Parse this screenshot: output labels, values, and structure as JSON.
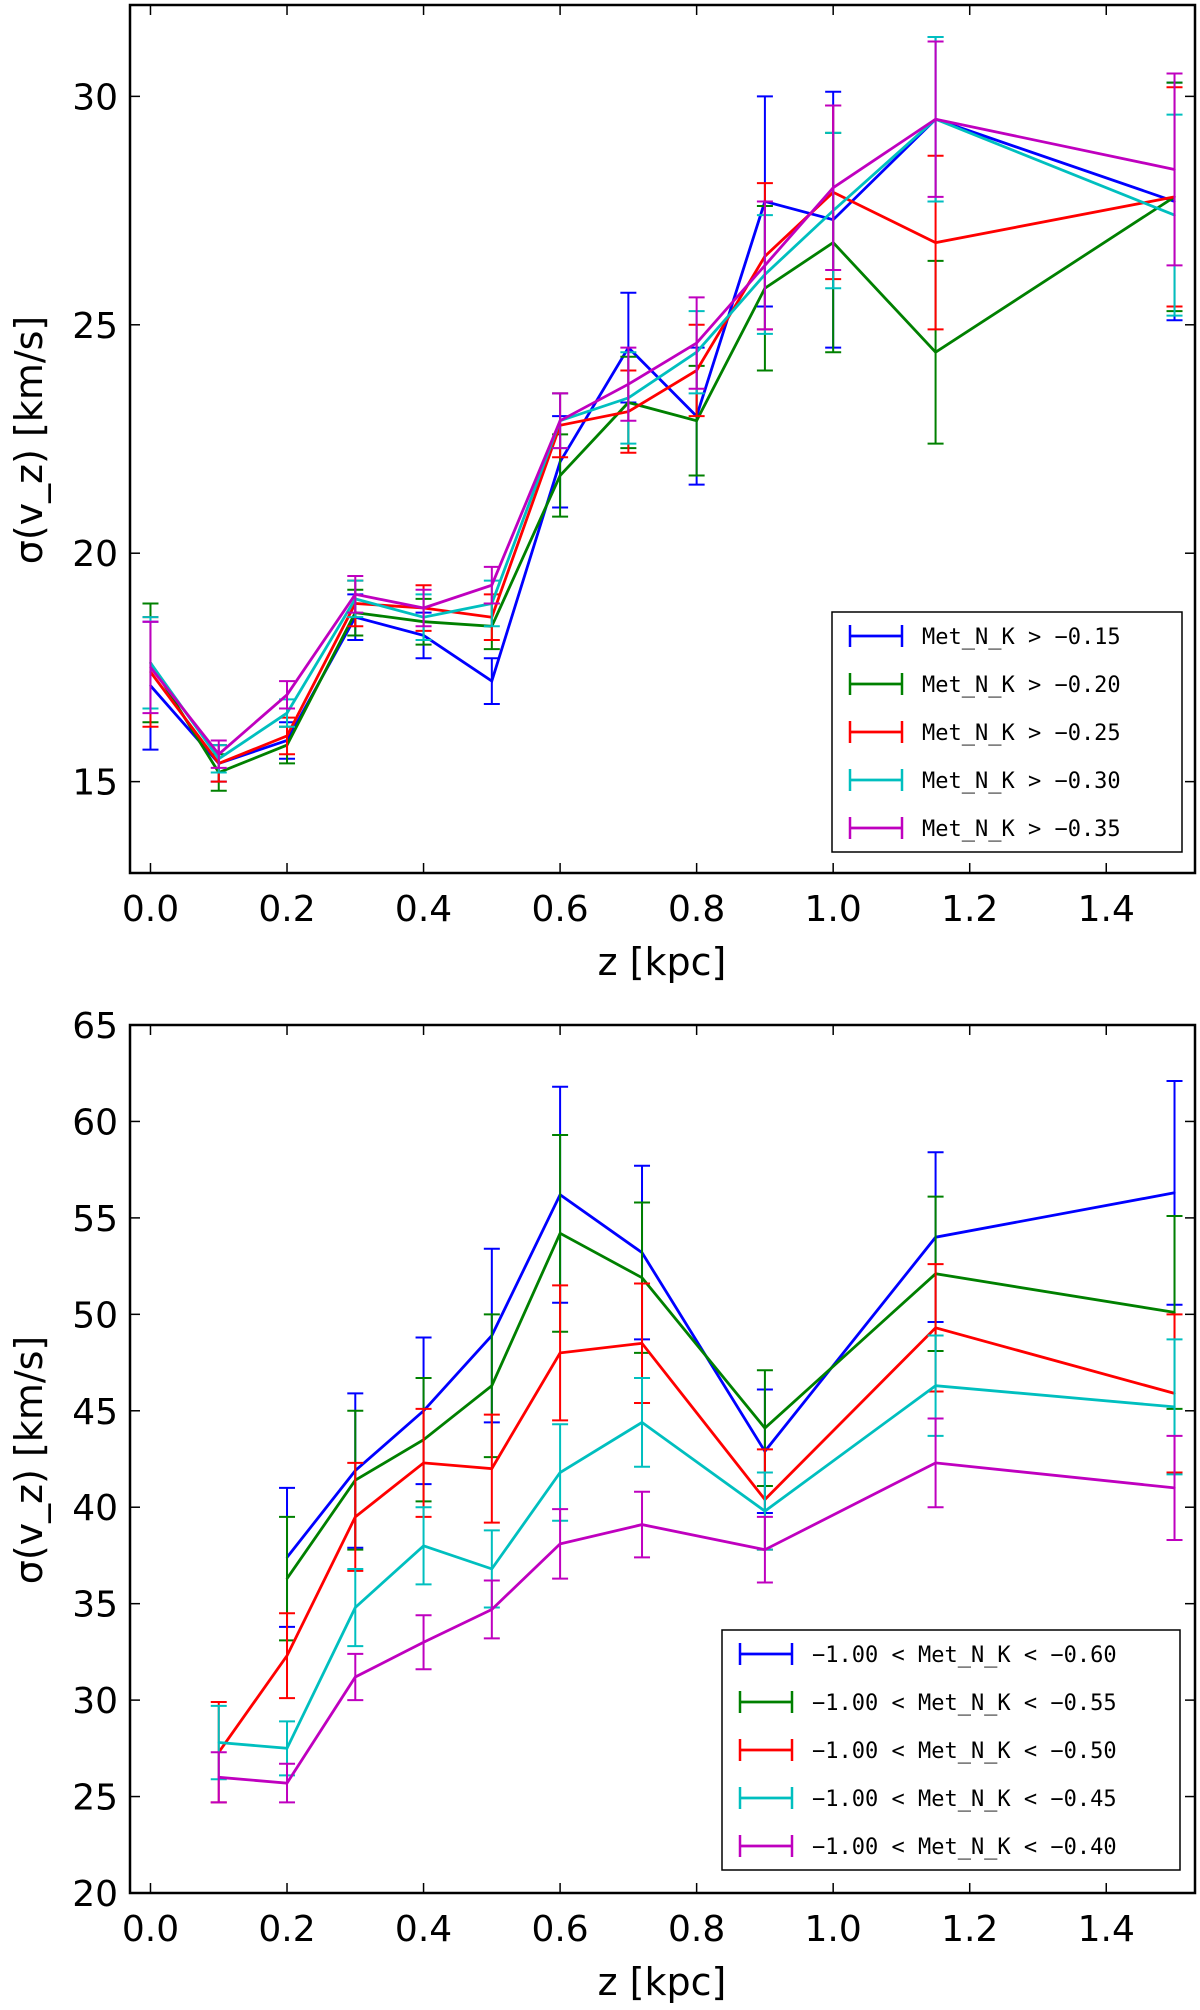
{
  "chart_data": [
    {
      "type": "line",
      "title": "",
      "xlabel": "z [kpc]",
      "ylabel": "σ(v_z) [km/s]",
      "xlim": [
        -0.03,
        1.53
      ],
      "ylim": [
        13,
        32
      ],
      "xticks": [
        0.0,
        0.2,
        0.4,
        0.6,
        0.8,
        1.0,
        1.2,
        1.4
      ],
      "xtick_labels": [
        "0.0",
        "0.2",
        "0.4",
        "0.6",
        "0.8",
        "1.0",
        "1.2",
        "1.4"
      ],
      "yticks": [
        15,
        20,
        25,
        30
      ],
      "ytick_labels": [
        "15",
        "20",
        "25",
        "30"
      ],
      "legend_position": "lower-right",
      "x": [
        0.0,
        0.1,
        0.2,
        0.3,
        0.4,
        0.5,
        0.6,
        0.7,
        0.8,
        0.9,
        1.0,
        1.15,
        1.5
      ],
      "series": [
        {
          "name": "Met_N_K > −0.15",
          "color": "#0000ff",
          "values": [
            17.1,
            15.4,
            15.9,
            18.6,
            18.2,
            17.2,
            22.0,
            24.5,
            23.0,
            27.7,
            27.3,
            29.5,
            27.7
          ],
          "errors": [
            1.4,
            0.4,
            0.4,
            0.5,
            0.5,
            0.5,
            1.0,
            1.2,
            1.5,
            2.3,
            2.8,
            1.8,
            2.6
          ]
        },
        {
          "name": "Met_N_K > −0.20",
          "color": "#008000",
          "values": [
            17.6,
            15.2,
            15.8,
            18.7,
            18.5,
            18.4,
            21.7,
            23.3,
            22.9,
            25.8,
            26.8,
            24.4,
            27.8
          ],
          "errors": [
            1.3,
            0.4,
            0.4,
            0.5,
            0.5,
            0.5,
            0.9,
            1.0,
            1.2,
            1.8,
            2.4,
            2.0,
            2.5
          ]
        },
        {
          "name": "Met_N_K > −0.25",
          "color": "#ff0000",
          "values": [
            17.4,
            15.4,
            16.0,
            18.9,
            18.8,
            18.6,
            22.8,
            23.1,
            24.0,
            26.5,
            27.9,
            26.8,
            27.8
          ],
          "errors": [
            1.2,
            0.4,
            0.4,
            0.5,
            0.5,
            0.5,
            0.7,
            0.9,
            1.0,
            1.6,
            1.9,
            1.9,
            2.4
          ]
        },
        {
          "name": "Met_N_K > −0.30",
          "color": "#00bfbf",
          "values": [
            17.6,
            15.5,
            16.5,
            19.0,
            18.6,
            18.9,
            22.9,
            23.4,
            24.4,
            26.1,
            27.5,
            29.5,
            27.4
          ],
          "errors": [
            1.0,
            0.3,
            0.3,
            0.4,
            0.5,
            0.5,
            0.6,
            1.0,
            0.9,
            1.3,
            1.7,
            1.8,
            2.2
          ]
        },
        {
          "name": "Met_N_K > −0.35",
          "color": "#bf00bf",
          "values": [
            17.5,
            15.6,
            16.9,
            19.1,
            18.8,
            19.3,
            22.9,
            23.7,
            24.6,
            26.3,
            28.0,
            29.5,
            28.4
          ],
          "errors": [
            1.0,
            0.3,
            0.3,
            0.4,
            0.4,
            0.4,
            0.6,
            0.8,
            1.0,
            1.4,
            1.8,
            1.7,
            2.1
          ]
        }
      ]
    },
    {
      "type": "line",
      "title": "",
      "xlabel": "z [kpc]",
      "ylabel": "σ(v_z) [km/s]",
      "xlim": [
        -0.03,
        1.53
      ],
      "ylim": [
        20,
        65
      ],
      "xticks": [
        0.0,
        0.2,
        0.4,
        0.6,
        0.8,
        1.0,
        1.2,
        1.4
      ],
      "xtick_labels": [
        "0.0",
        "0.2",
        "0.4",
        "0.6",
        "0.8",
        "1.0",
        "1.2",
        "1.4"
      ],
      "yticks": [
        20,
        25,
        30,
        35,
        40,
        45,
        50,
        55,
        60,
        65
      ],
      "ytick_labels": [
        "20",
        "25",
        "30",
        "35",
        "40",
        "45",
        "50",
        "55",
        "60",
        "65"
      ],
      "legend_position": "lower-right",
      "x": [
        0.1,
        0.2,
        0.3,
        0.4,
        0.5,
        0.6,
        0.72,
        0.9,
        1.15,
        1.5
      ],
      "series": [
        {
          "name": "−1.00 < Met_N_K < −0.60",
          "color": "#0000ff",
          "x": [
            0.2,
            0.3,
            0.4,
            0.5,
            0.6,
            0.72,
            0.9,
            1.15,
            1.5
          ],
          "values": [
            37.4,
            41.9,
            45.0,
            48.9,
            56.2,
            53.2,
            42.9,
            54.0,
            56.3
          ],
          "errors": [
            3.6,
            4.0,
            3.8,
            4.5,
            5.6,
            4.5,
            3.2,
            4.4,
            5.8
          ]
        },
        {
          "name": "−1.00 < Met_N_K < −0.55",
          "color": "#008000",
          "x": [
            0.2,
            0.3,
            0.4,
            0.5,
            0.6,
            0.72,
            0.9,
            1.15,
            1.5
          ],
          "values": [
            36.3,
            41.4,
            43.5,
            46.3,
            54.2,
            51.9,
            44.1,
            52.1,
            50.1
          ],
          "errors": [
            3.2,
            3.6,
            3.2,
            3.7,
            5.1,
            3.9,
            3.0,
            4.0,
            5.0
          ]
        },
        {
          "name": "−1.00 < Met_N_K < −0.50",
          "color": "#ff0000",
          "x": [
            0.1,
            0.2,
            0.3,
            0.4,
            0.5,
            0.6,
            0.72,
            0.9,
            1.15,
            1.5
          ],
          "values": [
            27.3,
            32.3,
            39.5,
            42.3,
            42.0,
            48.0,
            48.5,
            40.4,
            49.3,
            45.9
          ],
          "errors": [
            2.6,
            2.2,
            2.8,
            2.8,
            2.8,
            3.5,
            3.1,
            2.6,
            3.3,
            4.1
          ]
        },
        {
          "name": "−1.00 < Met_N_K < −0.45",
          "color": "#00bfbf",
          "x": [
            0.1,
            0.2,
            0.3,
            0.4,
            0.5,
            0.6,
            0.72,
            0.9,
            1.15,
            1.5
          ],
          "values": [
            27.8,
            27.5,
            34.8,
            38.0,
            36.8,
            41.8,
            44.4,
            39.8,
            46.3,
            45.2
          ],
          "errors": [
            1.9,
            1.4,
            2.0,
            2.0,
            2.0,
            2.5,
            2.3,
            2.0,
            2.6,
            3.5
          ]
        },
        {
          "name": "−1.00 < Met_N_K < −0.40",
          "color": "#bf00bf",
          "x": [
            0.1,
            0.2,
            0.3,
            0.4,
            0.5,
            0.6,
            0.72,
            0.9,
            1.15,
            1.5
          ],
          "values": [
            26.0,
            25.7,
            31.2,
            33.0,
            34.7,
            38.1,
            39.1,
            37.8,
            42.3,
            41.0
          ],
          "errors": [
            1.3,
            1.0,
            1.2,
            1.4,
            1.5,
            1.8,
            1.7,
            1.7,
            2.3,
            2.7
          ]
        }
      ]
    }
  ]
}
